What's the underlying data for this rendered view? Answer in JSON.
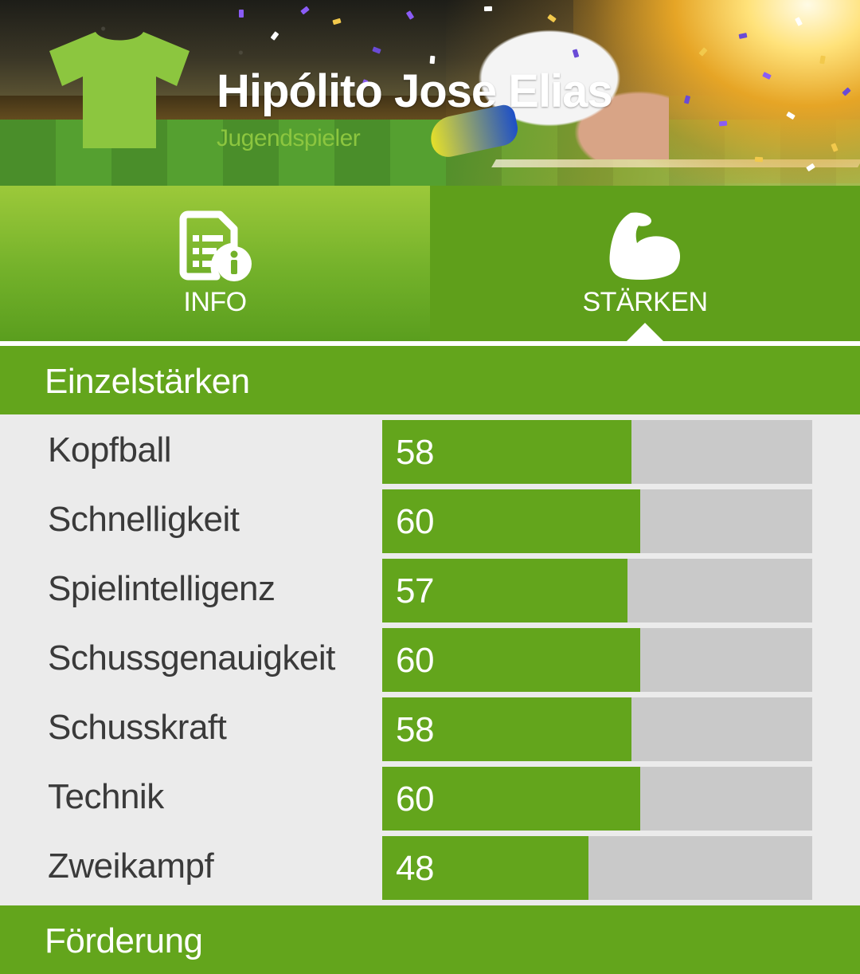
{
  "header": {
    "player_name": "Hipólito Jose Elias",
    "player_status": "Jugendspieler",
    "shirt_icon": "shirt-icon",
    "shirt_color": "#8cc63f"
  },
  "tabs": [
    {
      "label": "INFO",
      "icon": "document-info-icon",
      "active": false
    },
    {
      "label": "STÄRKEN",
      "icon": "flexed-arm-icon",
      "active": true
    }
  ],
  "sections": {
    "einzelstaerken": "Einzelstärken",
    "foerderung": "Förderung"
  },
  "stats": [
    {
      "label": "Kopfball",
      "value": "58",
      "level": 58
    },
    {
      "label": "Schnelligkeit",
      "value": "60",
      "level": 60
    },
    {
      "label": "Spielintelligenz",
      "value": "57",
      "level": 57
    },
    {
      "label": "Schussgenauigkeit",
      "value": "60",
      "level": 60
    },
    {
      "label": "Schusskraft",
      "value": "58",
      "level": 58
    },
    {
      "label": "Technik",
      "value": "60",
      "level": 60
    },
    {
      "label": "Zweikampf",
      "value": "48",
      "level": 48
    }
  ],
  "colors": {
    "accent_green": "#63a51c",
    "bar_track": "#c9c9c9",
    "label_text": "#3a3a3a"
  }
}
